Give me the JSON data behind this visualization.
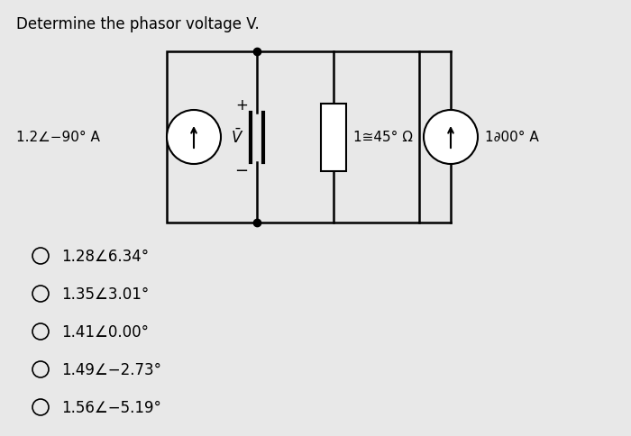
{
  "title": "Determine the phasor voltage V.",
  "background_color": "#e8e8e8",
  "labels": {
    "left_source": "1.2∠−90° A",
    "right_source": "1∂00° A",
    "impedance": "1≅45° Ω",
    "voltage_label": "$\\bar{V}$",
    "plus": "+",
    "minus": "−"
  },
  "choices": [
    "1.28∠6.34°",
    "1.35∠3.01°",
    "1.41∠0.00°",
    "1.49∠−2.73°",
    "1.56∠−5.19°"
  ],
  "title_fontsize": 12,
  "label_fontsize": 11,
  "choice_fontsize": 12
}
